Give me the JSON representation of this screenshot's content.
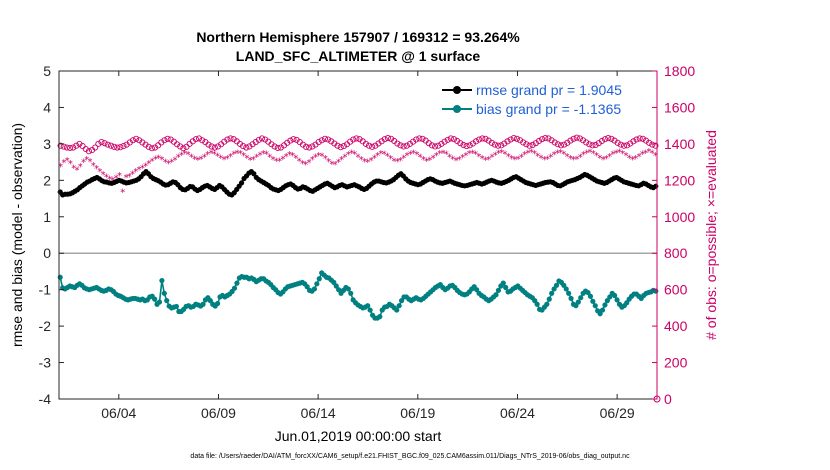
{
  "chart_data": {
    "type": "line",
    "title": "Northern Hemisphere 157907 / 169312 = 93.264%",
    "subtitle": "LAND_SFC_ALTIMETER @ 1 surface",
    "xlabel": "Jun.01,2019 00:00:00 start",
    "ylabel": "rmse and bias (model - observation)",
    "ylabel_right": "# of obs: o=possible; ×=evaluated",
    "footnote": "data file: /Users/raeder/DAI/ATM_forcXX/CAM6_setup/f.e21.FHIST_BGC.f09_025.CAM6assim.011/Diags_NTrS_2019-06/obs_diag_output.nc",
    "x_unit": "days since Jun.01,2019",
    "xlim": [
      0.5,
      30.5
    ],
    "x_ticks": [
      3.5,
      8.5,
      13.5,
      18.5,
      23.5,
      28.5
    ],
    "x_tick_labels": [
      "06/04",
      "06/09",
      "06/14",
      "06/19",
      "06/24",
      "06/29"
    ],
    "ylim": [
      -4,
      5
    ],
    "y_ticks": [
      -4,
      -3,
      -2,
      -1,
      0,
      1,
      2,
      3,
      4,
      5
    ],
    "ylim_right": [
      0,
      1800
    ],
    "y_ticks_right": [
      0,
      200,
      400,
      600,
      800,
      1000,
      1200,
      1400,
      1600,
      1800
    ],
    "grid": false,
    "legend_position": "top-right",
    "zero_line": 0,
    "series": [
      {
        "name": "rmse grand pr = 1.9045",
        "color": "#000000",
        "marker": "dot",
        "axis": "left",
        "values": [
          1.68,
          1.6,
          1.62,
          1.62,
          1.63,
          1.66,
          1.7,
          1.74,
          1.8,
          1.85,
          1.9,
          1.95,
          1.98,
          2.02,
          2.05,
          2.08,
          2.04,
          1.99,
          1.96,
          1.95,
          1.93,
          1.92,
          1.94,
          1.97,
          2.0,
          1.98,
          1.95,
          1.93,
          1.94,
          1.96,
          1.98,
          2.0,
          2.04,
          2.1,
          2.18,
          2.24,
          2.18,
          2.1,
          2.05,
          2.02,
          1.99,
          1.95,
          1.9,
          1.87,
          1.88,
          1.92,
          1.96,
          1.94,
          1.88,
          1.8,
          1.75,
          1.74,
          1.78,
          1.83,
          1.82,
          1.76,
          1.72,
          1.75,
          1.8,
          1.84,
          1.86,
          1.82,
          1.78,
          1.75,
          1.8,
          1.86,
          1.82,
          1.75,
          1.68,
          1.62,
          1.6,
          1.66,
          1.75,
          1.84,
          1.93,
          2.05,
          2.12,
          2.2,
          2.24,
          2.18,
          2.08,
          2.02,
          1.98,
          1.94,
          1.9,
          1.86,
          1.8,
          1.76,
          1.74,
          1.72,
          1.75,
          1.8,
          1.85,
          1.88,
          1.9,
          1.86,
          1.8,
          1.76,
          1.78,
          1.82,
          1.8,
          1.76,
          1.72,
          1.7,
          1.74,
          1.78,
          1.82,
          1.86,
          1.9,
          1.92,
          1.88,
          1.84,
          1.8,
          1.82,
          1.86,
          1.88,
          1.85,
          1.82,
          1.84,
          1.86,
          1.88,
          1.85,
          1.82,
          1.78,
          1.75,
          1.78,
          1.84,
          1.9,
          1.95,
          1.98,
          1.98,
          1.96,
          1.94,
          1.93,
          1.95,
          1.98,
          2.02,
          2.08,
          2.14,
          2.18,
          2.12,
          2.04,
          1.98,
          1.94,
          1.92,
          1.9,
          1.88,
          1.9,
          1.94,
          1.98,
          2.02,
          2.04,
          2.02,
          1.98,
          1.95,
          1.93,
          1.92,
          1.94,
          1.96,
          1.98,
          1.95,
          1.92,
          1.9,
          1.88,
          1.86,
          1.85,
          1.86,
          1.88,
          1.9,
          1.92,
          1.94,
          1.92,
          1.9,
          1.92,
          1.95,
          1.98,
          2.0,
          1.98,
          1.95,
          1.93,
          1.92,
          1.94,
          1.97,
          2.0,
          2.04,
          2.08,
          2.1,
          2.06,
          2.02,
          1.98,
          1.94,
          1.92,
          1.9,
          1.88,
          1.86,
          1.88,
          1.9,
          1.92,
          1.94,
          1.95,
          1.96,
          1.94,
          1.9,
          1.86,
          1.85,
          1.88,
          1.92,
          1.96,
          1.98,
          2.0,
          2.02,
          2.05,
          2.08,
          2.12,
          2.16,
          2.14,
          2.1,
          2.06,
          2.02,
          1.98,
          1.96,
          1.94,
          1.92,
          1.94,
          1.98,
          2.02,
          2.06,
          2.08,
          2.04,
          2.0,
          1.96,
          1.94,
          1.92,
          1.9,
          1.88,
          1.86,
          1.85,
          1.88,
          1.92,
          1.9,
          1.86,
          1.82,
          1.8,
          1.84
        ]
      },
      {
        "name": "bias grand pr = -1.1365",
        "color": "#008080",
        "marker": "dot",
        "axis": "left",
        "values": [
          -0.66,
          -0.95,
          -0.98,
          -0.94,
          -0.9,
          -0.92,
          -0.94,
          -0.88,
          -0.84,
          -0.88,
          -0.95,
          -0.98,
          -1.0,
          -0.98,
          -0.96,
          -0.94,
          -0.98,
          -1.02,
          -1.04,
          -1.02,
          -0.98,
          -1.0,
          -1.05,
          -1.12,
          -1.16,
          -1.18,
          -1.22,
          -1.26,
          -1.28,
          -1.26,
          -1.24,
          -1.24,
          -1.26,
          -1.28,
          -1.26,
          -1.3,
          -1.28,
          -1.2,
          -1.18,
          -1.26,
          -1.4,
          -1.34,
          -0.75,
          -1.1,
          -1.3,
          -1.45,
          -1.5,
          -1.48,
          -1.46,
          -1.6,
          -1.6,
          -1.54,
          -1.46,
          -1.44,
          -1.48,
          -1.46,
          -1.4,
          -1.42,
          -1.45,
          -1.4,
          -1.28,
          -1.22,
          -1.3,
          -1.4,
          -1.45,
          -1.38,
          -1.2,
          -1.16,
          -1.2,
          -1.16,
          -1.12,
          -1.05,
          -0.96,
          -0.82,
          -0.68,
          -0.64,
          -0.66,
          -0.66,
          -0.7,
          -0.68,
          -0.72,
          -0.78,
          -0.74,
          -0.7,
          -0.7,
          -0.76,
          -0.8,
          -0.86,
          -0.94,
          -1.0,
          -1.08,
          -1.12,
          -1.06,
          -0.98,
          -0.92,
          -0.9,
          -0.88,
          -0.86,
          -0.84,
          -0.82,
          -0.8,
          -0.84,
          -0.92,
          -1.02,
          -1.04,
          -0.98,
          -0.84,
          -0.7,
          -0.54,
          -0.6,
          -0.66,
          -0.68,
          -0.74,
          -0.8,
          -0.9,
          -1.0,
          -1.1,
          -1.02,
          -0.94,
          -0.98,
          -1.1,
          -1.28,
          -1.36,
          -1.42,
          -1.46,
          -1.5,
          -1.48,
          -1.44,
          -1.56,
          -1.7,
          -1.78,
          -1.78,
          -1.74,
          -1.56,
          -1.48,
          -1.46,
          -1.4,
          -1.44,
          -1.5,
          -1.56,
          -1.44,
          -1.3,
          -1.2,
          -1.2,
          -1.26,
          -1.3,
          -1.26,
          -1.22,
          -1.26,
          -1.28,
          -1.24,
          -1.18,
          -1.12,
          -1.06,
          -1.0,
          -0.94,
          -0.9,
          -0.86,
          -0.94,
          -1.0,
          -0.96,
          -0.9,
          -0.88,
          -0.94,
          -1.02,
          -1.08,
          -1.12,
          -1.14,
          -1.12,
          -1.06,
          -0.98,
          -0.92,
          -1.0,
          -1.1,
          -1.16,
          -1.2,
          -1.26,
          -1.3,
          -1.26,
          -1.2,
          -1.14,
          -1.02,
          -0.9,
          -0.82,
          -0.94,
          -1.06,
          -1.04,
          -0.98,
          -0.94,
          -0.9,
          -0.96,
          -1.02,
          -1.08,
          -1.14,
          -1.18,
          -1.22,
          -1.3,
          -1.4,
          -1.54,
          -1.56,
          -1.48,
          -1.4,
          -1.26,
          -1.1,
          -0.98,
          -0.88,
          -0.76,
          -0.8,
          -0.88,
          -0.98,
          -1.1,
          -1.24,
          -1.4,
          -1.44,
          -1.34,
          -1.22,
          -1.1,
          -1.04,
          -1.08,
          -1.18,
          -1.32,
          -1.44,
          -1.58,
          -1.66,
          -1.56,
          -1.42,
          -1.3,
          -1.2,
          -1.1,
          -1.16,
          -1.28,
          -1.4,
          -1.48,
          -1.44,
          -1.36,
          -1.26,
          -1.18,
          -1.12,
          -1.12,
          -1.18,
          -1.24,
          -1.16,
          -1.1,
          -1.08,
          -1.06,
          -1.02,
          -1.04
        ]
      },
      {
        "name": "possible",
        "color": "#cc0066",
        "marker": "circle",
        "axis": "right",
        "values": [
          1390,
          1385,
          1380,
          1378,
          1380,
          1390,
          1400,
          1388,
          1372,
          1360,
          1366,
          1380,
          1400,
          1410,
          1404,
          1396,
          1390,
          1384,
          1380,
          1382,
          1388,
          1396,
          1408,
          1420,
          1428,
          1420,
          1408,
          1396,
          1384,
          1376,
          1380,
          1392,
          1408,
          1420,
          1428,
          1424,
          1412,
          1398,
          1386,
          1376,
          1384,
          1400,
          1414,
          1426,
          1430,
          1420,
          1410,
          1396,
          1386,
          1380,
          1386,
          1398,
          1412,
          1424,
          1430,
          1426,
          1414,
          1400,
          1388,
          1380,
          1386,
          1398,
          1410,
          1422,
          1430,
          1424,
          1412,
          1398,
          1386,
          1378,
          1380,
          1392,
          1406,
          1418,
          1426,
          1422,
          1410,
          1396,
          1384,
          1380,
          1386,
          1396,
          1410,
          1420,
          1428,
          1424,
          1414,
          1402,
          1390,
          1382,
          1388,
          1398,
          1412,
          1424,
          1430,
          1426,
          1414,
          1400,
          1390,
          1384,
          1390,
          1402,
          1414,
          1426,
          1432,
          1428,
          1416,
          1402,
          1392,
          1386,
          1390,
          1400,
          1412,
          1424,
          1430,
          1428,
          1418,
          1404,
          1392,
          1386,
          1390,
          1400,
          1412,
          1422,
          1430,
          1426,
          1416,
          1404,
          1394,
          1388,
          1392,
          1402,
          1414,
          1424,
          1430,
          1428,
          1418,
          1406,
          1396,
          1390,
          1392,
          1402,
          1414,
          1424,
          1432,
          1428,
          1420,
          1408,
          1398,
          1390,
          1394,
          1404,
          1416,
          1426,
          1432,
          1430,
          1420,
          1408,
          1398,
          1392,
          1396,
          1406,
          1418,
          1428,
          1434,
          1430,
          1420,
          1408,
          1398,
          1392,
          1394,
          1404,
          1416,
          1426,
          1432,
          1428,
          1418,
          1406,
          1396,
          1390,
          1392,
          1402,
          1414,
          1424,
          1430,
          1428,
          1418,
          1406,
          1396,
          1390
        ]
      },
      {
        "name": "evaluated",
        "color": "#cc0066",
        "marker": "star",
        "axis": "right",
        "values": [
          1280,
          1300,
          1312,
          1295,
          1270,
          1260,
          1280,
          1302,
          1318,
          1305,
          1285,
          1268,
          1250,
          1235,
          1220,
          1210,
          1205,
          1215,
          1230,
          1140,
          1218,
          1225,
          1238,
          1250,
          1262,
          1270,
          1282,
          1295,
          1310,
          1320,
          1326,
          1318,
          1304,
          1296,
          1302,
          1314,
          1330,
          1342,
          1350,
          1345,
          1332,
          1320,
          1314,
          1320,
          1332,
          1344,
          1352,
          1348,
          1336,
          1324,
          1316,
          1322,
          1334,
          1346,
          1354,
          1350,
          1338,
          1324,
          1314,
          1318,
          1330,
          1342,
          1350,
          1346,
          1332,
          1318,
          1308,
          1310,
          1320,
          1334,
          1344,
          1340,
          1326,
          1310,
          1296,
          1290,
          1300,
          1316,
          1330,
          1340,
          1336,
          1322,
          1306,
          1292,
          1290,
          1302,
          1318,
          1332,
          1344,
          1352,
          1346,
          1332,
          1318,
          1306,
          1302,
          1312,
          1326,
          1340,
          1350,
          1348,
          1336,
          1322,
          1310,
          1306,
          1312,
          1326,
          1338,
          1348,
          1352,
          1344,
          1330,
          1318,
          1310,
          1314,
          1326,
          1340,
          1350,
          1354,
          1346,
          1332,
          1320,
          1312,
          1316,
          1328,
          1340,
          1350,
          1354,
          1346,
          1334,
          1322,
          1314,
          1318,
          1330,
          1342,
          1352,
          1356,
          1348,
          1334,
          1322,
          1316,
          1320,
          1332,
          1344,
          1354,
          1358,
          1350,
          1336,
          1324,
          1316,
          1320,
          1332,
          1344,
          1354,
          1356,
          1348,
          1334,
          1322,
          1316,
          1320,
          1332,
          1344,
          1354,
          1358,
          1350,
          1338,
          1326,
          1318,
          1322,
          1334,
          1346,
          1354,
          1358,
          1350,
          1338,
          1326,
          1318,
          1322,
          1334,
          1346,
          1354,
          1360,
          1352,
          1340
        ]
      }
    ]
  }
}
